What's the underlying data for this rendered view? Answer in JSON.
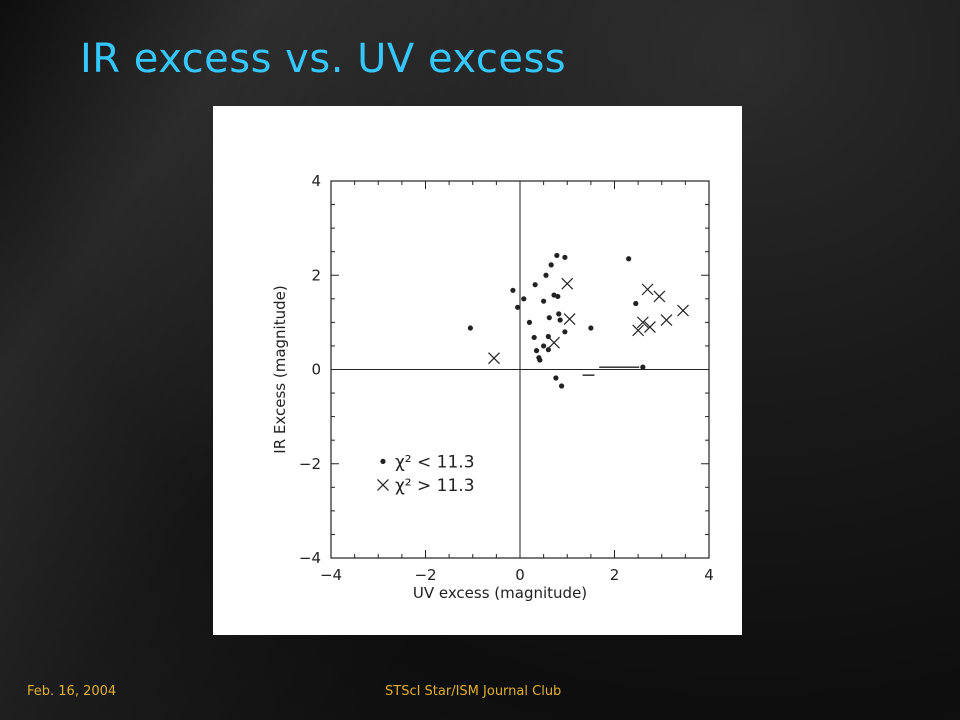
{
  "slide": {
    "title": "IR excess vs. UV excess",
    "footer_left": "Feb. 16, 2004",
    "footer_center": "STScI Star/ISM Journal Club"
  },
  "colors": {
    "title": "#35c8ff",
    "footer": "#e0b030",
    "plot_ink": "#222222"
  },
  "chart_data": {
    "type": "scatter",
    "title": "",
    "xlabel": "UV excess (magnitude)",
    "ylabel": "IR Excess (magnitude)",
    "xlim": [
      -4,
      4
    ],
    "ylim": [
      -4,
      4
    ],
    "xticks": [
      -4,
      -2,
      0,
      2,
      4
    ],
    "yticks": [
      4,
      2,
      0,
      -2,
      -4
    ],
    "grid": false,
    "zero_lines": true,
    "legend": {
      "placement": "bottom-left",
      "entries": [
        {
          "marker": "dot",
          "label": "χ² < 11.3"
        },
        {
          "marker": "cross",
          "label": "χ² > 11.3"
        }
      ]
    },
    "series": [
      {
        "marker": "dot",
        "points": [
          [
            -1.05,
            0.88
          ],
          [
            -0.15,
            1.68
          ],
          [
            -0.05,
            1.32
          ],
          [
            0.08,
            1.5
          ],
          [
            0.2,
            1.0
          ],
          [
            0.3,
            0.68
          ],
          [
            0.32,
            1.8
          ],
          [
            0.35,
            0.4
          ],
          [
            0.4,
            0.25
          ],
          [
            0.42,
            0.2
          ],
          [
            0.5,
            0.5
          ],
          [
            0.5,
            1.45
          ],
          [
            0.55,
            2.0
          ],
          [
            0.6,
            0.42
          ],
          [
            0.6,
            0.7
          ],
          [
            0.62,
            1.1
          ],
          [
            0.66,
            2.22
          ],
          [
            0.72,
            1.58
          ],
          [
            0.76,
            -0.18
          ],
          [
            0.78,
            2.42
          ],
          [
            0.8,
            1.55
          ],
          [
            0.82,
            1.18
          ],
          [
            0.85,
            1.05
          ],
          [
            0.88,
            -0.35
          ],
          [
            0.95,
            2.38
          ],
          [
            0.95,
            0.8
          ],
          [
            1.5,
            0.88
          ],
          [
            2.3,
            2.35
          ],
          [
            2.45,
            1.4
          ],
          [
            2.6,
            0.05
          ]
        ]
      },
      {
        "marker": "cross",
        "points": [
          [
            -0.55,
            0.24
          ],
          [
            0.72,
            0.57
          ],
          [
            1.0,
            1.82
          ],
          [
            1.05,
            1.07
          ],
          [
            2.5,
            0.83
          ],
          [
            2.6,
            1.0
          ],
          [
            2.7,
            1.7
          ],
          [
            2.75,
            0.9
          ],
          [
            2.95,
            1.55
          ],
          [
            3.1,
            1.05
          ],
          [
            3.45,
            1.25
          ]
        ]
      },
      {
        "marker": "dash",
        "points": [
          [
            1.45,
            -0.12
          ]
        ]
      },
      {
        "marker": "hbar",
        "points": [
          [
            2.1,
            0.05
          ]
        ]
      }
    ]
  }
}
